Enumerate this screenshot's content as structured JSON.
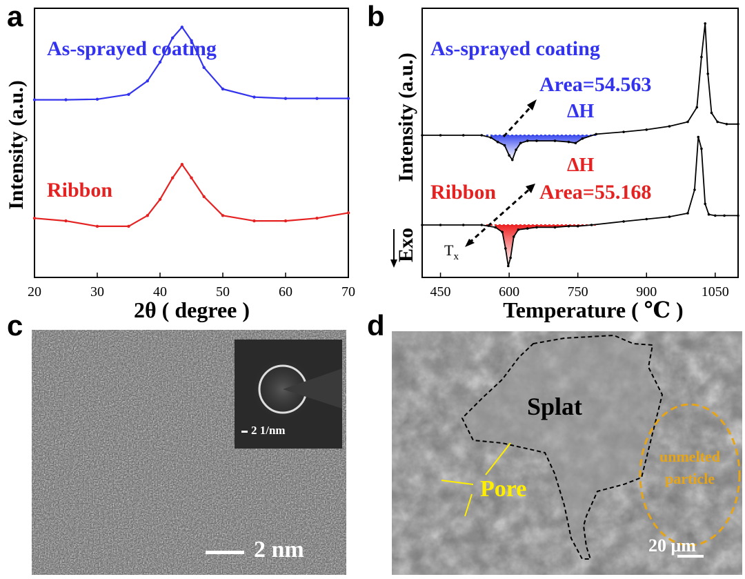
{
  "panels": {
    "a": {
      "letter": "a"
    },
    "b": {
      "letter": "b"
    },
    "c": {
      "letter": "c"
    },
    "d": {
      "letter": "d"
    }
  },
  "chart_data": [
    {
      "panel": "a",
      "type": "line",
      "xlabel": "2θ ( degree )",
      "ylabel": "Intensity (a.u.)",
      "xlim": [
        20,
        70
      ],
      "xticks": [
        20,
        30,
        40,
        50,
        60,
        70
      ],
      "series": [
        {
          "name": "As-sprayed coating",
          "color": "#3333ee",
          "x": [
            20,
            25,
            30,
            35,
            38,
            40,
            42,
            43.5,
            45,
            47,
            50,
            55,
            60,
            65,
            70
          ],
          "y": [
            0.66,
            0.66,
            0.662,
            0.68,
            0.73,
            0.8,
            0.89,
            0.93,
            0.88,
            0.78,
            0.7,
            0.67,
            0.665,
            0.665,
            0.665
          ]
        },
        {
          "name": "Ribbon",
          "color": "#e52222",
          "x": [
            20,
            25,
            30,
            35,
            38,
            40,
            42,
            43.5,
            45,
            47,
            50,
            55,
            60,
            65,
            70
          ],
          "y": [
            0.22,
            0.21,
            0.19,
            0.19,
            0.23,
            0.29,
            0.37,
            0.42,
            0.37,
            0.3,
            0.23,
            0.21,
            0.21,
            0.22,
            0.24
          ]
        }
      ]
    },
    {
      "panel": "b",
      "type": "line",
      "xlabel": "Temperature ( ℃ )",
      "ylabel": "Intensity (a.u.)",
      "exo_label": "Exo",
      "xlim": [
        410,
        1100
      ],
      "xticks": [
        450,
        600,
        750,
        900,
        1050
      ],
      "series": [
        {
          "name": "As-sprayed coating",
          "color": "#000000",
          "x": [
            410,
            450,
            500,
            540,
            560,
            575,
            590,
            600,
            607,
            615,
            625,
            640,
            660,
            700,
            730,
            745,
            760,
            790,
            850,
            900,
            950,
            990,
            1010,
            1020,
            1028,
            1034,
            1042,
            1055,
            1075,
            1100
          ],
          "y": [
            0.0,
            0.0,
            0.0,
            0.0,
            -0.02,
            -0.06,
            -0.09,
            -0.18,
            -0.22,
            -0.13,
            -0.07,
            -0.05,
            -0.05,
            -0.05,
            -0.06,
            -0.07,
            -0.03,
            0.01,
            0.03,
            0.05,
            0.08,
            0.12,
            0.25,
            0.7,
            1.0,
            0.55,
            0.2,
            0.12,
            0.1,
            0.1
          ]
        },
        {
          "name": "Ribbon",
          "color": "#000000",
          "x": [
            410,
            450,
            500,
            540,
            570,
            585,
            592,
            598,
            603,
            610,
            620,
            640,
            660,
            700,
            730,
            750,
            780,
            850,
            900,
            950,
            990,
            1005,
            1013,
            1020,
            1028,
            1036,
            1050,
            1070,
            1100
          ],
          "y": [
            0.0,
            0.0,
            0.0,
            0.0,
            -0.02,
            -0.06,
            -0.2,
            -0.35,
            -0.28,
            -0.1,
            -0.04,
            -0.03,
            -0.02,
            -0.02,
            -0.01,
            -0.01,
            0.0,
            0.03,
            0.05,
            0.07,
            0.1,
            0.3,
            0.75,
            0.65,
            0.18,
            0.09,
            0.08,
            0.08,
            0.08
          ]
        }
      ],
      "annotations": {
        "top_label": "As-sprayed coating",
        "top_area": "Area=54.563",
        "top_dh": "ΔH",
        "bot_dh": "ΔH",
        "bot_label": "Ribbon",
        "bot_area": "Area=55.168",
        "tx": "T",
        "tx_sub": "x",
        "top_fill": "#3344ee",
        "bot_fill": "#ee2222"
      }
    }
  ],
  "panel_c": {
    "scale_label": "2 nm",
    "inset_scale": "2 1/nm"
  },
  "panel_d": {
    "splat_label": "Splat",
    "pore_label": "Pore",
    "unmelted_label_1": "unmelted",
    "unmelted_label_2": "particle",
    "scale_label": "20 μm",
    "pore_color": "#ffee00",
    "unmelted_color": "#e6a418"
  }
}
